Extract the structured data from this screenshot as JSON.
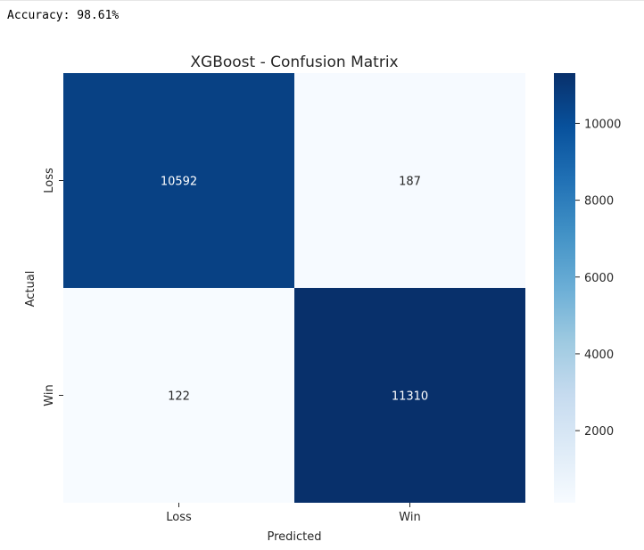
{
  "cell_output": {
    "text": "Accuracy: 98.61%"
  },
  "chart_data": {
    "type": "heatmap",
    "title": "XGBoost - Confusion Matrix",
    "xlabel": "Predicted",
    "ylabel": "Actual",
    "x_categories": [
      "Loss",
      "Win"
    ],
    "y_categories": [
      "Loss",
      "Win"
    ],
    "matrix": [
      [
        10592,
        187
      ],
      [
        122,
        11310
      ]
    ],
    "colormap": "Blues",
    "colorbar": {
      "range": [
        122,
        11310
      ],
      "ticks": [
        2000,
        4000,
        6000,
        8000,
        10000
      ],
      "tick_labels": [
        "2000",
        "4000",
        "6000",
        "8000",
        "10000"
      ]
    },
    "colors": {
      "darkest": "#08306b",
      "lightest": "#f7fbff",
      "annotation_light": "#ffffff",
      "annotation_dark": "#262626"
    }
  }
}
